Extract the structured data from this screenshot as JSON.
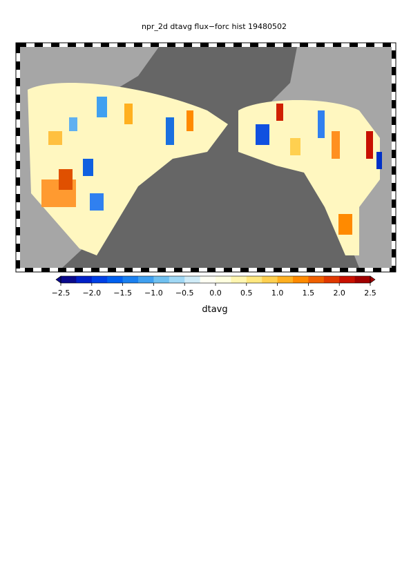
{
  "title": "npr_2d dtavg flux−forc hist 19480502",
  "colorbar": {
    "label": "dtavg",
    "lim": [
      -2.5,
      2.5
    ],
    "ticks": [
      {
        "value": -2.5,
        "label": "−2.5"
      },
      {
        "value": -2,
        "label": "−2.0"
      },
      {
        "value": -1.5,
        "label": "−1.5"
      },
      {
        "value": -1,
        "label": "−1.0"
      },
      {
        "value": -0.5,
        "label": "−0.5"
      },
      {
        "value": 0,
        "label": "0.0"
      },
      {
        "value": 0.5,
        "label": "0.5"
      },
      {
        "value": 1,
        "label": "1.0"
      },
      {
        "value": 1.5,
        "label": "1.5"
      },
      {
        "value": 2,
        "label": "2.0"
      },
      {
        "value": 2.5,
        "label": "2.5"
      }
    ],
    "colors": [
      "#0a0a8c",
      "#0020c8",
      "#0040e6",
      "#0060f0",
      "#1a80f0",
      "#40a0f0",
      "#70c0f0",
      "#a0d8f5",
      "#d0ecf8",
      "#fffff4",
      "#ffffe0",
      "#fff6b0",
      "#ffe880",
      "#ffd050",
      "#ffb020",
      "#ff8a00",
      "#f06000",
      "#e03800",
      "#c81000",
      "#a00000"
    ]
  }
}
